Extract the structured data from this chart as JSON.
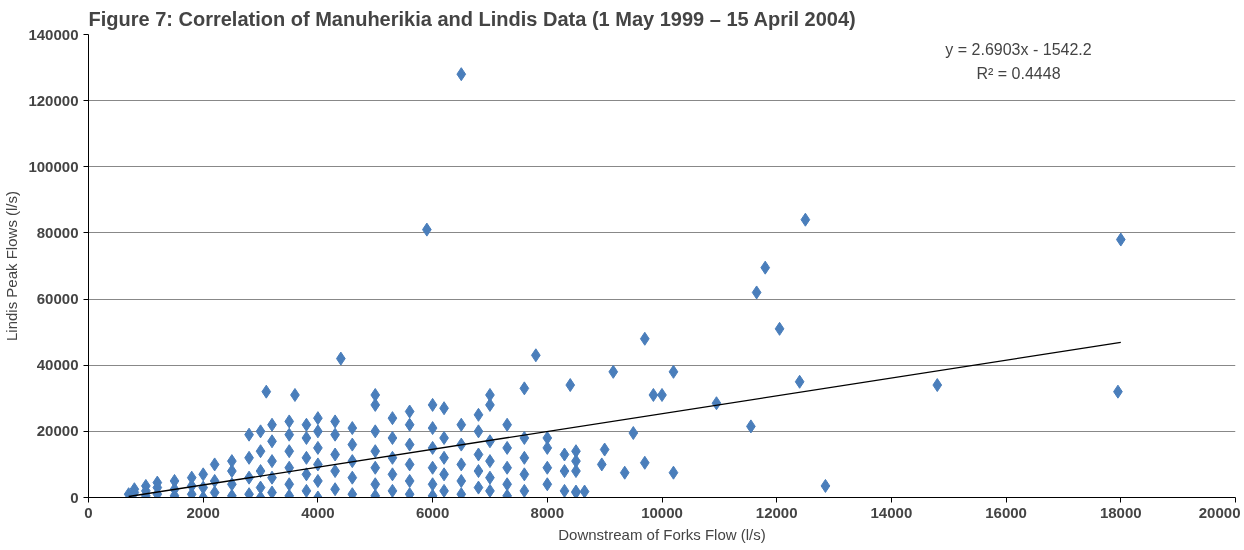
{
  "chart_data": {
    "type": "scatter",
    "title": "Figure 7: Correlation of Manuherikia and Lindis Data (1 May 1999 – 15 April 2004)",
    "xlabel": "Downstream of Forks Flow (l/s)",
    "ylabel": "Lindis Peak Flows (l/s)",
    "xlim": [
      0,
      20000
    ],
    "xticks": [
      0,
      2000,
      4000,
      6000,
      8000,
      10000,
      12000,
      14000,
      16000,
      18000,
      20000
    ],
    "ylim": [
      0,
      140000
    ],
    "yticks": [
      0,
      20000,
      40000,
      60000,
      80000,
      100000,
      120000,
      140000
    ],
    "grid": "y",
    "annotations": [
      "y = 2.6903x - 1542.2",
      "R² = 0.4448"
    ],
    "series": [
      {
        "marker": "diamond",
        "color": "#4a7ebb",
        "x": [
          700,
          800,
          800,
          1000,
          1000,
          1000,
          1200,
          1200,
          1200,
          1500,
          1500,
          1500,
          1800,
          1800,
          1800,
          2000,
          2000,
          2000,
          2200,
          2200,
          2200,
          2500,
          2500,
          2500,
          2500,
          2800,
          2800,
          2800,
          2800,
          3000,
          3000,
          3000,
          3000,
          3000,
          3200,
          3200,
          3200,
          3200,
          3200,
          3500,
          3500,
          3500,
          3500,
          3500,
          3500,
          3800,
          3800,
          3800,
          3800,
          3800,
          4000,
          4000,
          4000,
          4000,
          4000,
          4000,
          4300,
          4300,
          4300,
          4300,
          4300,
          4600,
          4600,
          4600,
          4600,
          4600,
          5000,
          5000,
          5000,
          5000,
          5000,
          5000,
          5000,
          5300,
          5300,
          5300,
          5300,
          5300,
          5600,
          5600,
          5600,
          5600,
          5600,
          5600,
          6000,
          6000,
          6000,
          6000,
          6000,
          6000,
          6200,
          6200,
          6200,
          6200,
          6200,
          6500,
          6500,
          6500,
          6500,
          6500,
          6800,
          6800,
          6800,
          6800,
          6800,
          7000,
          7000,
          7000,
          7000,
          7000,
          7300,
          7300,
          7300,
          7300,
          7300,
          7600,
          7600,
          7600,
          7600,
          8000,
          8000,
          8000,
          8000,
          8300,
          8300,
          8300,
          8500,
          8500,
          8500,
          6500,
          5900,
          4400,
          3100,
          3600,
          7800,
          7600,
          7000,
          12500,
          18000,
          11800,
          11650,
          12050,
          9700,
          9150,
          10200,
          8400,
          9850,
          10000,
          10950,
          12400,
          14800,
          17950,
          11550,
          9500,
          9000,
          8500,
          9700,
          9350,
          10200,
          8950,
          12850,
          8500,
          8650
        ],
        "values": [
          1000,
          1500,
          2500,
          500,
          2000,
          3500,
          1000,
          3000,
          4500,
          500,
          2500,
          5000,
          1000,
          3500,
          6000,
          0,
          3000,
          7000,
          1500,
          5000,
          10000,
          500,
          4000,
          8000,
          11000,
          1000,
          6000,
          12000,
          19000,
          0,
          3000,
          8000,
          14000,
          20000,
          1500,
          6000,
          11000,
          17000,
          22000,
          500,
          4000,
          9000,
          14000,
          19000,
          23000,
          2000,
          7000,
          12000,
          18000,
          22000,
          0,
          5000,
          10000,
          15000,
          20000,
          24000,
          2500,
          8000,
          13000,
          19000,
          23000,
          1000,
          6000,
          11000,
          16000,
          21000,
          500,
          4000,
          9000,
          14000,
          20000,
          28000,
          31000,
          2000,
          7000,
          12000,
          18000,
          24000,
          1000,
          5000,
          10000,
          16000,
          22000,
          26000,
          500,
          4000,
          9000,
          15000,
          21000,
          28000,
          2000,
          7000,
          12000,
          18000,
          27000,
          1000,
          5000,
          10000,
          16000,
          22000,
          3000,
          8000,
          13000,
          20000,
          25000,
          2000,
          6000,
          11000,
          17000,
          28000,
          500,
          4000,
          9000,
          15000,
          22000,
          2000,
          7000,
          12000,
          18000,
          4000,
          9000,
          15000,
          18000,
          2000,
          8000,
          13000,
          1500,
          8000,
          11000,
          128000,
          81000,
          42000,
          32000,
          31000,
          43000,
          33000,
          31000,
          84000,
          78000,
          69500,
          62000,
          51000,
          48000,
          38000,
          38000,
          34000,
          31000,
          31000,
          28500,
          35000,
          34000,
          32000,
          21500,
          19500,
          14500,
          14000,
          10500,
          7500,
          7500,
          10000,
          3500,
          1800,
          1800
        ]
      },
      {
        "type": "line",
        "color": "#000000",
        "x": [
          700,
          18000
        ],
        "values": [
          300,
          46900
        ]
      }
    ]
  }
}
